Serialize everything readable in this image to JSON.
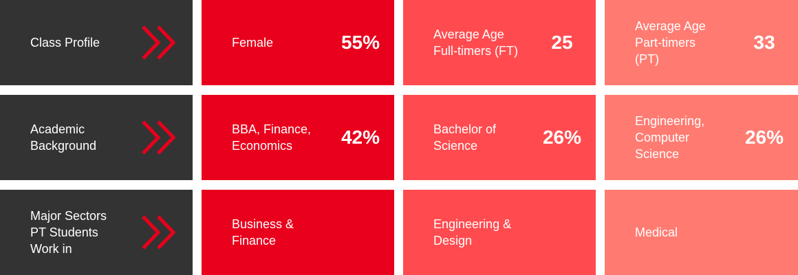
{
  "rows": [
    {
      "header": [
        "Class Profile"
      ],
      "cells": [
        {
          "label": [
            "Female"
          ],
          "value": "55%"
        },
        {
          "label": [
            "Average Age",
            "Full-timers (FT)"
          ],
          "value": "25"
        },
        {
          "label": [
            "Average Age",
            "Part-timers",
            "(PT)"
          ],
          "value": "33"
        }
      ]
    },
    {
      "header": [
        "Academic",
        "Background"
      ],
      "cells": [
        {
          "label": [
            "BBA, Finance,",
            "Economics"
          ],
          "value": "42%"
        },
        {
          "label": [
            "Bachelor of",
            "Science"
          ],
          "value": "26%"
        },
        {
          "label": [
            "Engineering,",
            "Computer",
            "Science"
          ],
          "value": "26%"
        }
      ]
    },
    {
      "header": [
        "Major Sectors",
        "PT Students",
        "Work in"
      ],
      "cells": [
        {
          "label": [
            "Business &",
            "Finance"
          ]
        },
        {
          "label": [
            "Engineering &",
            "Design"
          ]
        },
        {
          "label": [
            "Medical"
          ]
        }
      ]
    }
  ]
}
